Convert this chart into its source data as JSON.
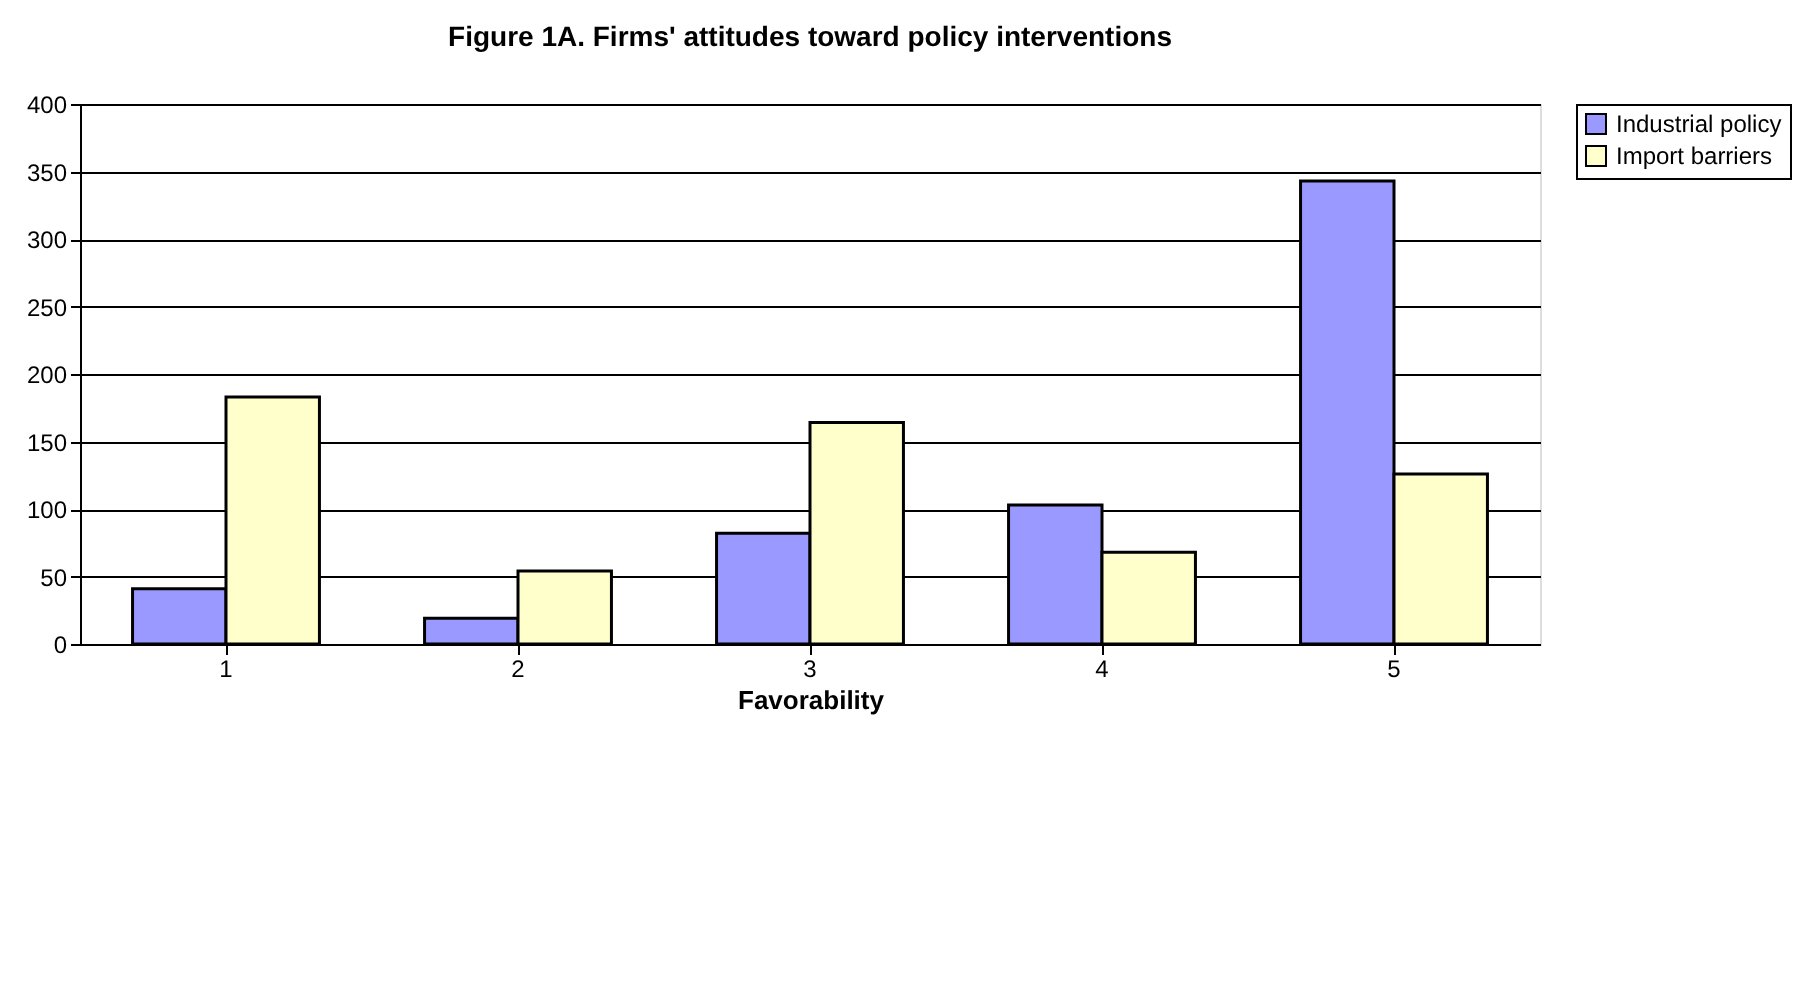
{
  "chart_data": {
    "type": "bar",
    "title": "Figure 1A. Firms' attitudes toward policy interventions",
    "xlabel": "Favorability",
    "categories": [
      "1",
      "2",
      "3",
      "4",
      "5"
    ],
    "series": [
      {
        "name": "Industrial policy",
        "color": "#9999ff",
        "values": [
          41,
          19,
          82,
          103,
          343
        ]
      },
      {
        "name": "Import barriers",
        "color": "#ffffcc",
        "values": [
          183,
          54,
          164,
          68,
          126
        ]
      }
    ],
    "ylim": [
      0,
      400
    ],
    "yticks": [
      0,
      50,
      100,
      150,
      200,
      250,
      300,
      350,
      400
    ],
    "grid": "y",
    "legend": "right"
  }
}
